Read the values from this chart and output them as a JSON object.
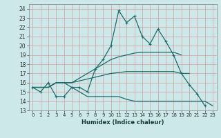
{
  "xlabel": "Humidex (Indice chaleur)",
  "bg_color": "#cce8e8",
  "grid_color": "#b0d0d0",
  "line_color": "#1a6b6b",
  "xlim": [
    -0.5,
    23.5
  ],
  "ylim": [
    13,
    24.5
  ],
  "yticks": [
    13,
    14,
    15,
    16,
    17,
    18,
    19,
    20,
    21,
    22,
    23,
    24
  ],
  "xticks": [
    0,
    1,
    2,
    3,
    4,
    5,
    6,
    7,
    8,
    9,
    10,
    11,
    12,
    13,
    14,
    15,
    16,
    17,
    18,
    19,
    20,
    21,
    22,
    23
  ],
  "x": [
    0,
    1,
    2,
    3,
    4,
    5,
    6,
    7,
    8,
    9,
    10,
    11,
    12,
    13,
    14,
    15,
    16,
    17,
    18,
    19,
    20,
    21,
    22,
    23
  ],
  "line1_y": [
    15.5,
    15.0,
    16.0,
    14.5,
    14.5,
    15.5,
    15.5,
    15.0,
    17.5,
    18.5,
    20.0,
    23.8,
    22.5,
    23.2,
    21.0,
    20.2,
    21.8,
    20.5,
    19.0,
    17.0,
    15.8,
    14.8,
    13.5,
    null
  ],
  "line2_y": [
    15.5,
    15.5,
    15.5,
    16.0,
    16.0,
    16.0,
    16.5,
    17.0,
    17.5,
    18.0,
    18.5,
    18.8,
    19.0,
    19.2,
    19.3,
    19.3,
    19.3,
    19.3,
    19.3,
    19.0,
    null,
    null,
    null,
    null
  ],
  "line3_y": [
    15.5,
    15.5,
    15.5,
    16.0,
    16.0,
    16.0,
    16.2,
    16.4,
    16.6,
    16.8,
    17.0,
    17.1,
    17.2,
    17.2,
    17.2,
    17.2,
    17.2,
    17.2,
    17.2,
    17.0,
    17.0,
    null,
    null,
    null
  ],
  "line4_y": [
    15.5,
    15.5,
    15.5,
    16.0,
    16.0,
    15.5,
    15.0,
    14.5,
    14.5,
    14.5,
    14.5,
    14.5,
    14.2,
    14.0,
    14.0,
    14.0,
    14.0,
    14.0,
    14.0,
    14.0,
    14.0,
    14.0,
    14.0,
    13.5
  ]
}
